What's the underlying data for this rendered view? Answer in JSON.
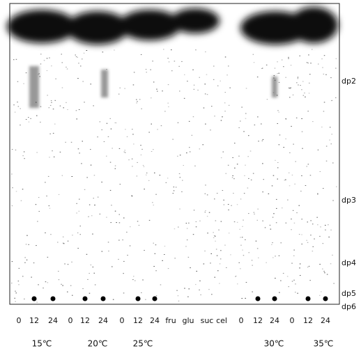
{
  "lanes": [
    "0",
    "12",
    "24",
    "0",
    "12",
    "24",
    "0",
    "12",
    "24",
    "fru",
    "glu",
    "suc",
    "cel",
    "0",
    "12",
    "24",
    "0",
    "12",
    "24"
  ],
  "temperatures": [
    "15℃",
    "20℃",
    "25℃",
    "30℃",
    "35℃"
  ],
  "bands": [
    "dp2",
    "dp3",
    "dp4",
    "dp5",
    "dp6"
  ]
}
